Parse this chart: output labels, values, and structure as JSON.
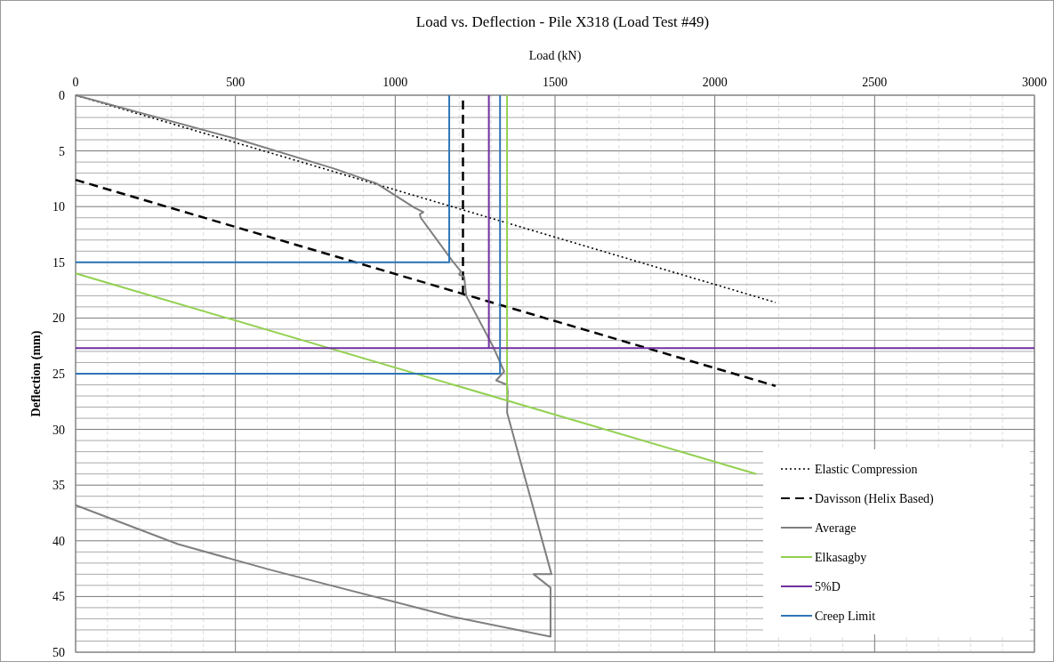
{
  "chart_data": {
    "type": "line",
    "title": "Load vs. Deflection - Pile X318 (Load Test #49)",
    "xlabel": "Load (kN)",
    "ylabel": "Deflection (mm)",
    "xlim": [
      0,
      3000
    ],
    "xticks": [
      0,
      500,
      1000,
      1500,
      2000,
      2500,
      3000
    ],
    "ylim": [
      50,
      0
    ],
    "yticks": [
      0,
      5,
      10,
      15,
      20,
      25,
      30,
      35,
      40,
      45,
      50
    ],
    "grid": true,
    "legend": "bottom right",
    "series": [
      {
        "name": "Elastic Compression",
        "color": "#000000",
        "line_style": "dotted",
        "x": [
          0,
          2190
        ],
        "values": [
          0,
          18.6
        ]
      },
      {
        "name": "Davisson (Helix Based)",
        "color": "#000000",
        "line_style": "dashed",
        "x": [
          0,
          2190,
          null,
          1212,
          1212
        ],
        "values": [
          7.6,
          26.1,
          null,
          17.9,
          0
        ]
      },
      {
        "name": "Average",
        "color": "#7f7f7f",
        "line_style": "solid",
        "x": [
          0,
          500,
          810,
          940,
          1060,
          1088,
          1077,
          1080,
          1177,
          1205,
          1200,
          1216,
          1222,
          1305,
          1341,
          1316,
          1350,
          1352,
          1350,
          1489,
          1433,
          1486,
          1486,
          1177,
          609,
          320,
          0
        ],
        "values": [
          0,
          3.9,
          6.6,
          7.9,
          10.1,
          10.5,
          10.7,
          11.0,
          14.8,
          15.8,
          16.1,
          16.3,
          18.0,
          22.5,
          24.8,
          25.6,
          26.0,
          26.6,
          28.5,
          43.0,
          43.0,
          44.2,
          48.6,
          46.8,
          42.6,
          40.3,
          36.8
        ]
      },
      {
        "name": "Elkasagby",
        "color": "#92d050",
        "line_style": "solid",
        "x": [
          0,
          2130,
          null,
          1350,
          1350
        ],
        "values": [
          16,
          34,
          null,
          27.3,
          0
        ]
      },
      {
        "name": "5%D",
        "color": "#7030a0",
        "line_style": "solid",
        "x": [
          0,
          3000,
          null,
          1293,
          1293
        ],
        "values": [
          22.7,
          22.7,
          null,
          22.7,
          0
        ]
      },
      {
        "name": "Creep Limit",
        "color": "#2e75b6",
        "line_style": "solid",
        "x": [
          0,
          1169,
          1169,
          null,
          0,
          1328,
          1328
        ],
        "values": [
          15,
          15,
          0,
          null,
          25,
          25,
          0
        ]
      }
    ]
  }
}
